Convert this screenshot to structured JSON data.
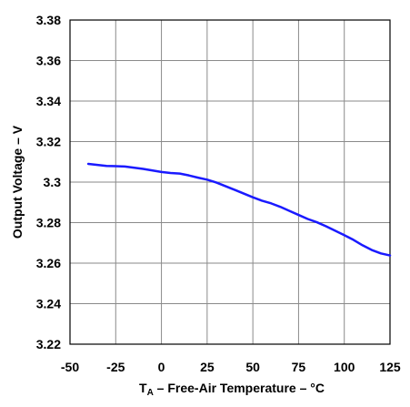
{
  "chart_data": {
    "type": "line",
    "title": "",
    "xlabel_prefix": "T",
    "xlabel_subscript": "A",
    "xlabel_rest": " – Free-Air Temperature – °C",
    "ylabel": "Output Voltage – V",
    "xlim": [
      -50,
      125
    ],
    "ylim": [
      3.22,
      3.38
    ],
    "x_ticks": [
      -50,
      -25,
      0,
      25,
      50,
      75,
      100,
      125
    ],
    "x_tick_labels": [
      "-50",
      "-25",
      "0",
      "25",
      "50",
      "75",
      "100",
      "125"
    ],
    "y_ticks": [
      3.22,
      3.24,
      3.26,
      3.28,
      3.3,
      3.32,
      3.34,
      3.36,
      3.38
    ],
    "y_tick_labels": [
      "3.22",
      "3.24",
      "3.26",
      "3.28",
      "3.3",
      "3.32",
      "3.34",
      "3.36",
      "3.38"
    ],
    "grid": true,
    "series": [
      {
        "color": "#1a1aff",
        "x": [
          -40,
          -30,
          -20,
          -10,
          0,
          5,
          10,
          15,
          20,
          25,
          30,
          40,
          50,
          55,
          60,
          65,
          70,
          75,
          80,
          85,
          90,
          95,
          100,
          105,
          110,
          115,
          120,
          125
        ],
        "y": [
          3.309,
          3.308,
          3.3077,
          3.3065,
          3.305,
          3.3045,
          3.3042,
          3.3033,
          3.3022,
          3.3012,
          3.2998,
          3.2962,
          3.2925,
          3.2908,
          3.2895,
          3.2878,
          3.2858,
          3.2838,
          3.2818,
          3.2802,
          3.2782,
          3.276,
          3.2738,
          3.2715,
          3.2688,
          3.2665,
          3.2648,
          3.2638
        ]
      }
    ]
  }
}
